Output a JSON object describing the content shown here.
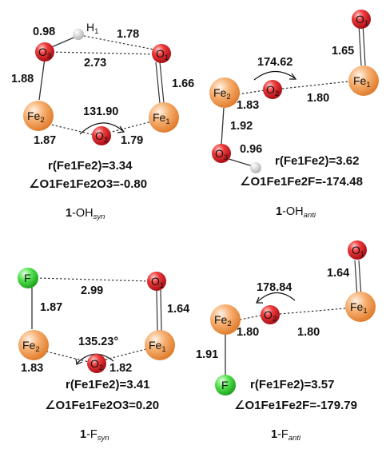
{
  "colors": {
    "iron": "#f5a05c",
    "oxygen": "#e8232f",
    "hydrogen": "#d9d9d9",
    "fluorine": "#3fdc3f"
  },
  "panels": {
    "oh_syn": {
      "atoms": {
        "o3": "O",
        "o3_sub": "3",
        "h1": "H",
        "h1_sub": "1",
        "o1": "O",
        "o1_sub": "1",
        "fe2": "Fe",
        "fe2_sub": "2",
        "fe1": "Fe",
        "fe1_sub": "1",
        "o2": "O",
        "o2_sub": "2"
      },
      "distances": {
        "o3_h1": "0.98",
        "h1_o1": "1.78",
        "o3_o1": "2.73",
        "fe2_o3": "1.88",
        "fe1_o1": "1.66",
        "fe2_o2": "1.87",
        "o2_fe1": "1.79"
      },
      "angle": "131.90",
      "r_value": "r(Fe1Fe2)=3.34",
      "dihedral_value": "∠O1Fe1Fe2O3=-0.80",
      "label_num": "1",
      "label_group": "-OH",
      "label_sub": "syn"
    },
    "oh_anti": {
      "atoms": {
        "o1": "O",
        "o1_sub": "1",
        "fe2": "Fe",
        "fe2_sub": "2",
        "o2": "O",
        "o2_sub": "2",
        "fe1": "Fe",
        "fe1_sub": "1",
        "o3": "O",
        "o3_sub": "3"
      },
      "distances": {
        "fe1_o1": "1.65",
        "fe2_o2": "1.83",
        "o2_fe1": "1.80",
        "fe2_o3": "1.92",
        "o3_h": "0.96"
      },
      "angle": "174.62",
      "r_value": "r(Fe1Fe2)=3.62",
      "dihedral_value": "∠O1Fe1Fe2F=-174.48",
      "label_num": "1",
      "label_group": "-OH",
      "label_sub": "anti"
    },
    "f_syn": {
      "atoms": {
        "f": "F",
        "o1": "O",
        "o1_sub": "1",
        "fe2": "Fe",
        "fe2_sub": "2",
        "fe1": "Fe",
        "fe1_sub": "1",
        "o2": "O",
        "o2_sub": "2"
      },
      "distances": {
        "f_o1": "2.99",
        "fe2_f": "1.87",
        "fe1_o1": "1.64",
        "fe2_o2": "1.83",
        "o2_fe1": "1.82"
      },
      "angle": "135.23°",
      "r_value": "r(Fe1Fe2)=3.41",
      "dihedral_value": "∠O1Fe1Fe2O3=0.20",
      "label_num": "1",
      "label_group": "-F",
      "label_sub": "syn"
    },
    "f_anti": {
      "atoms": {
        "o1": "O",
        "o1_sub": "1",
        "fe2": "Fe",
        "fe2_sub": "2",
        "o2": "O",
        "o2_sub": "2",
        "fe1": "Fe",
        "fe1_sub": "1",
        "f": "F"
      },
      "distances": {
        "fe1_o1": "1.64",
        "fe2_o2": "1.80",
        "o2_fe1": "1.80",
        "fe2_f": "1.91"
      },
      "angle": "178.84",
      "r_value": "r(Fe1Fe2)=3.57",
      "dihedral_value": "∠O1Fe1Fe2F=-179.79",
      "label_num": "1",
      "label_group": "-F",
      "label_sub": "anti"
    }
  }
}
